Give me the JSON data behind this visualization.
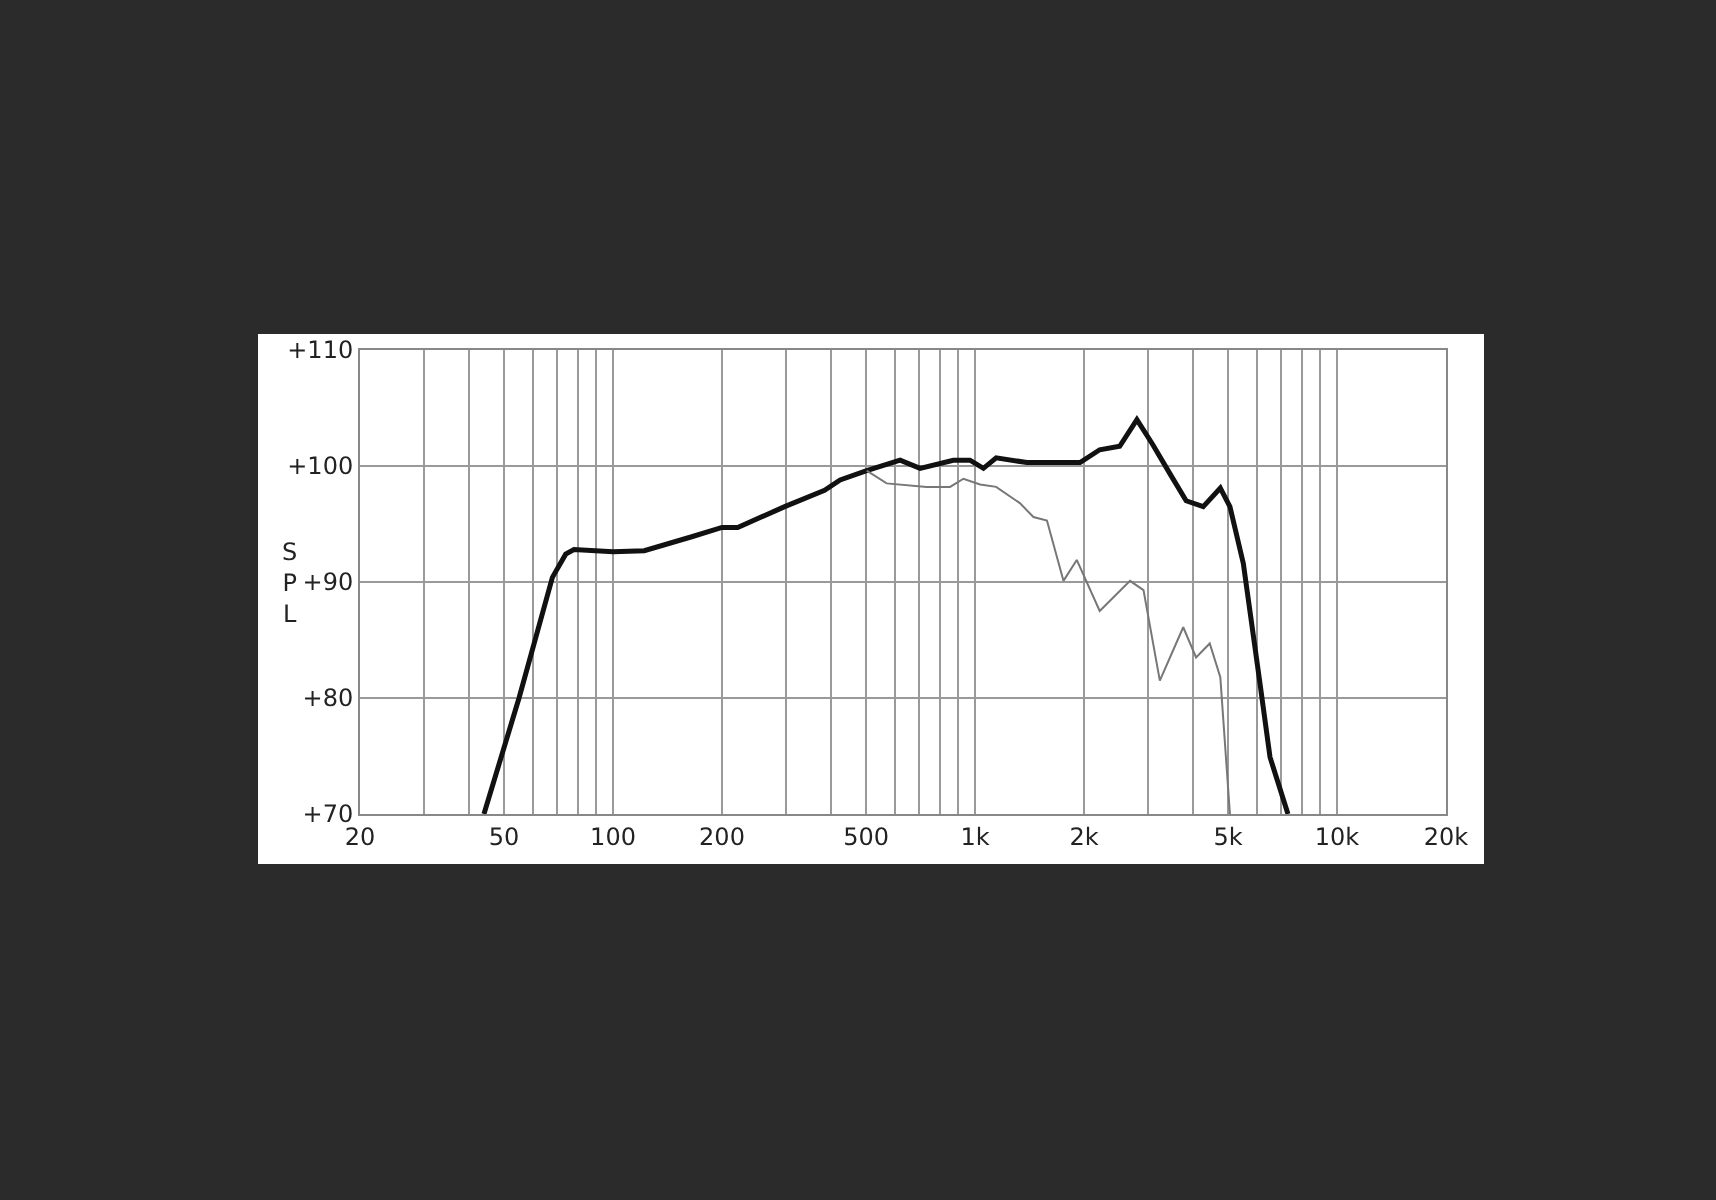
{
  "chart_data": {
    "type": "line",
    "ylabel": "SPL",
    "log": "x",
    "grid": true,
    "marker": "none",
    "line_style": "solid",
    "xlim": [
      20,
      20000
    ],
    "ylim": [
      70,
      110
    ],
    "xticks": [
      20,
      {
        "value": 30,
        "label": null
      },
      {
        "value": 40,
        "label": null
      },
      50,
      {
        "value": 60,
        "label": null
      },
      {
        "value": 70,
        "label": null
      },
      {
        "value": 80,
        "label": null
      },
      {
        "value": 90,
        "label": null
      },
      100,
      200,
      {
        "value": 300,
        "label": null
      },
      {
        "value": 400,
        "label": null
      },
      500,
      {
        "value": 600,
        "label": null
      },
      {
        "value": 700,
        "label": null
      },
      {
        "value": 800,
        "label": null
      },
      {
        "value": 900,
        "label": null
      },
      {
        "value": 1000,
        "label": "1k"
      },
      {
        "value": 2000,
        "label": "2k"
      },
      {
        "value": 3000,
        "label": null
      },
      {
        "value": 4000,
        "label": null
      },
      {
        "value": 5000,
        "label": "5k"
      },
      {
        "value": 6000,
        "label": null
      },
      {
        "value": 7000,
        "label": null
      },
      {
        "value": 8000,
        "label": null
      },
      {
        "value": 9000,
        "label": null
      },
      {
        "value": 10000,
        "label": "10k"
      },
      {
        "value": 20000,
        "label": "20k"
      }
    ],
    "yticks": [
      {
        "value": 70,
        "label": "+70"
      },
      {
        "value": 80,
        "label": "+80"
      },
      {
        "value": 90,
        "label": "+90"
      },
      {
        "value": 100,
        "label": "+100"
      },
      {
        "value": 110,
        "label": "+110"
      }
    ],
    "series": [
      {
        "color": "#111111",
        "x": [
          44,
          55,
          68,
          74,
          78,
          100,
          122,
          165,
          200,
          221,
          298,
          384,
          424,
          502,
          621,
          705,
          871,
          968,
          1055,
          1144,
          1390,
          1950,
          2210,
          2510,
          2800,
          3090,
          3460,
          3830,
          4270,
          4760,
          5060,
          5510,
          6130,
          6530,
          7320
        ],
        "values": [
          70,
          80,
          90.4,
          92.4,
          92.8,
          92.6,
          92.7,
          93.9,
          94.7,
          94.7,
          96.5,
          97.9,
          98.8,
          99.6,
          100.5,
          99.8,
          100.5,
          100.5,
          99.8,
          100.7,
          100.3,
          100.3,
          101.4,
          101.7,
          104,
          101.9,
          99.3,
          97,
          96.5,
          98.1,
          96.5,
          91.6,
          81.2,
          74.9,
          70
        ]
      },
      {
        "color": "#777777",
        "x": [
          502,
          570,
          735,
          853,
          929,
          1033,
          1144,
          1330,
          1450,
          1580,
          1755,
          1910,
          2210,
          2680,
          2920,
          3240,
          3760,
          4080,
          4450,
          4760,
          5060
        ],
        "values": [
          99.6,
          98.5,
          98.2,
          98.2,
          98.9,
          98.4,
          98.2,
          96.8,
          95.6,
          95.3,
          90.1,
          91.9,
          87.5,
          90.1,
          89.3,
          81.5,
          86.1,
          83.5,
          84.7,
          81.8,
          70
        ]
      }
    ]
  }
}
